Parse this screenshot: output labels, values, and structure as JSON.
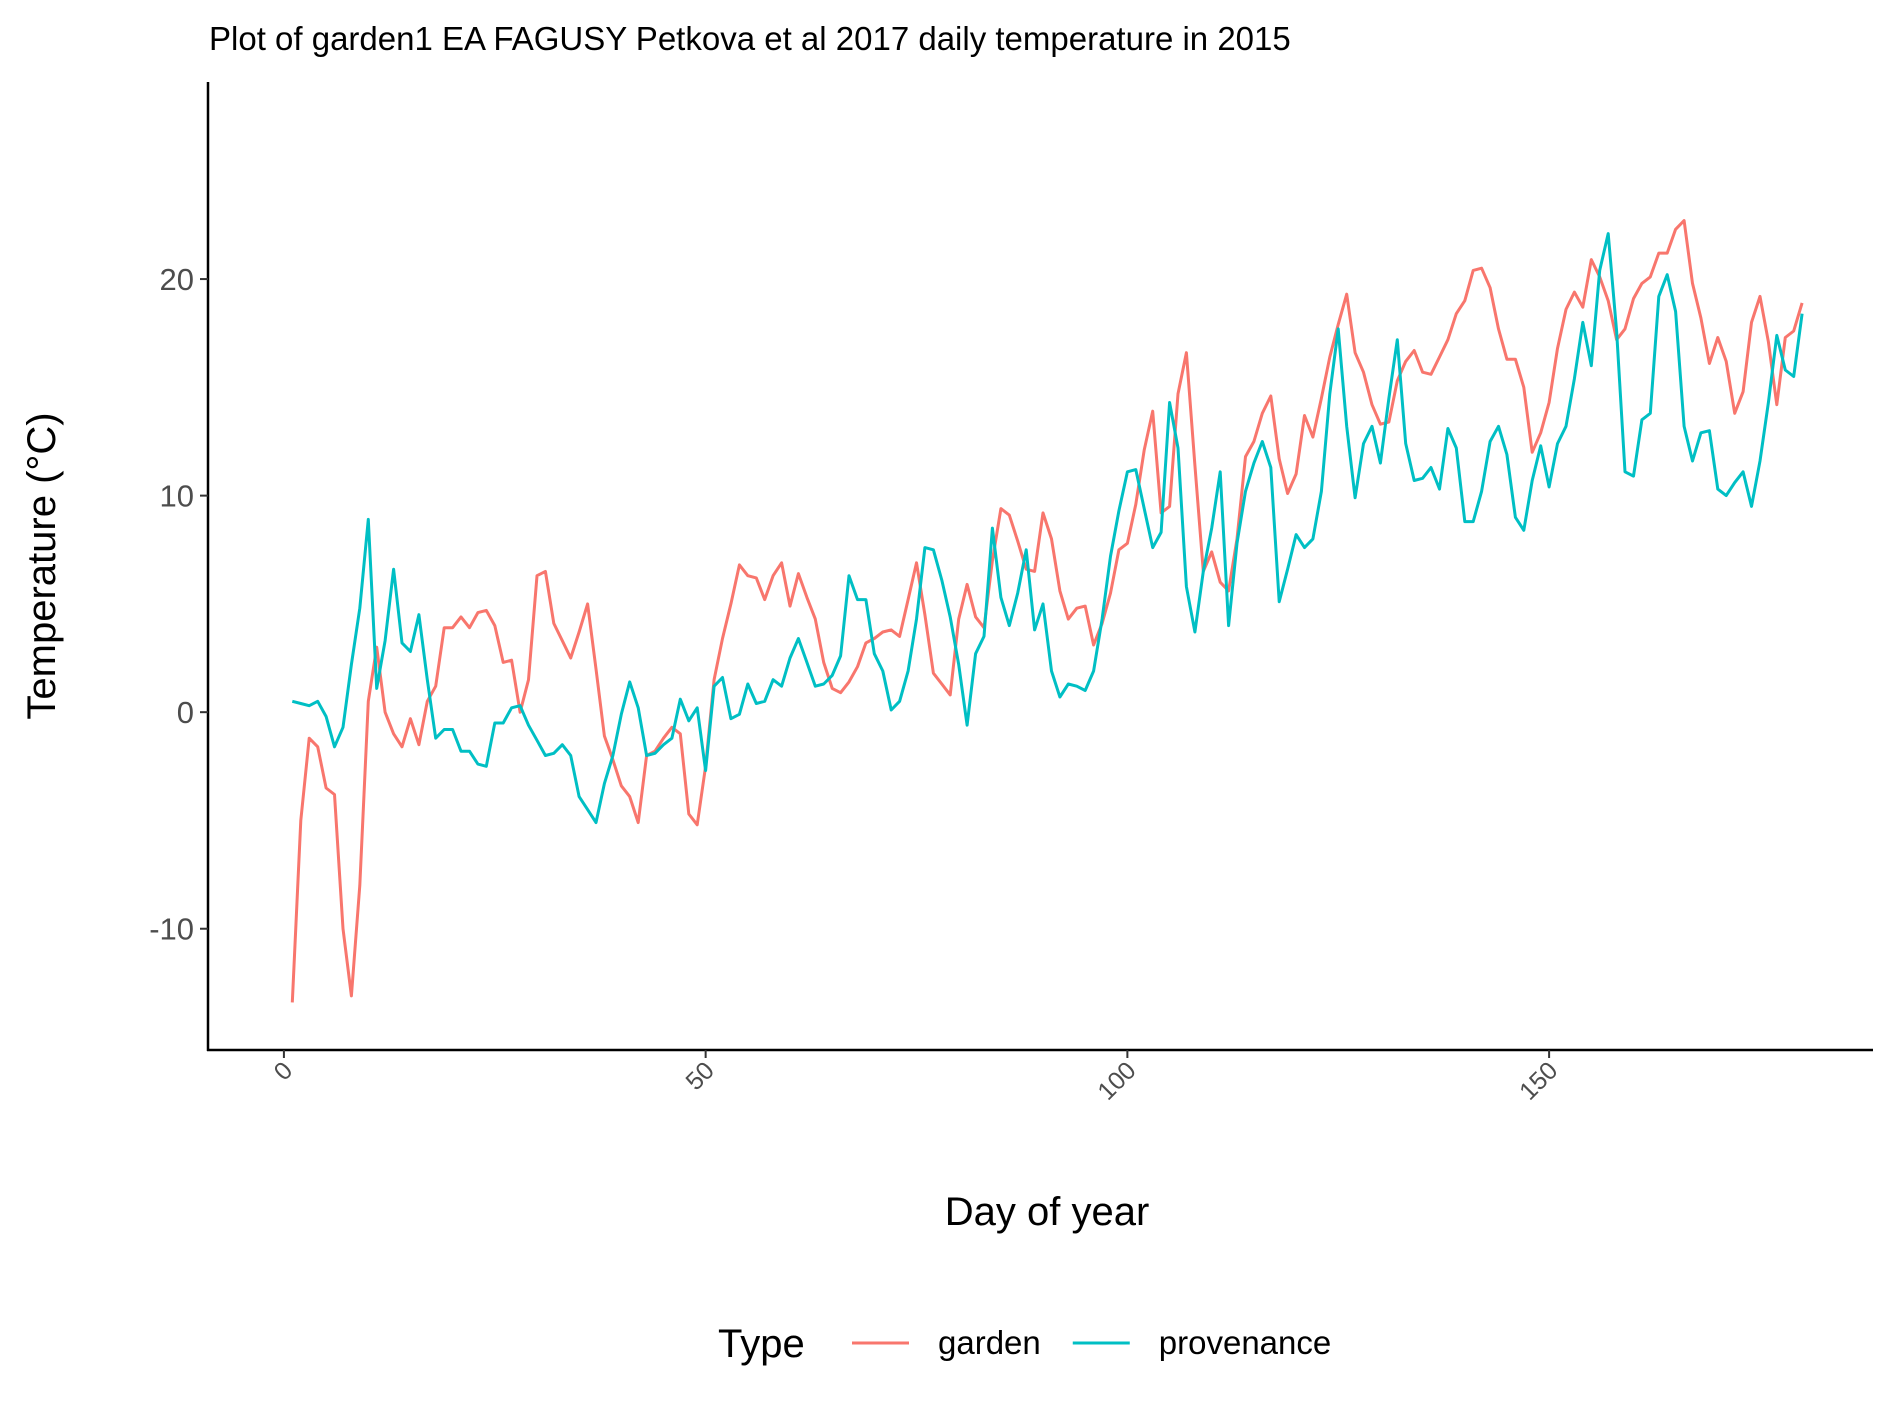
{
  "chart_data": {
    "type": "line",
    "title": "Plot of garden1 EA FAGUSY Petkova et al 2017 daily temperature in 2015",
    "x_label": "Day of year",
    "y_label": "Temperature (°C)",
    "legend_title": "Type",
    "grid": false,
    "legend_position": "bottom",
    "xlim": [
      -9,
      188.4
    ],
    "ylim": [
      -15.6,
      29.1
    ],
    "xticks": [
      0,
      50,
      100,
      150
    ],
    "yticks": [
      -10,
      0,
      10,
      20
    ],
    "x": [
      1,
      2,
      3,
      4,
      5,
      6,
      7,
      8,
      9,
      10,
      11,
      12,
      13,
      14,
      15,
      16,
      17,
      18,
      19,
      20,
      21,
      22,
      23,
      24,
      25,
      26,
      27,
      28,
      29,
      30,
      31,
      32,
      33,
      34,
      35,
      36,
      37,
      38,
      39,
      40,
      41,
      42,
      43,
      44,
      45,
      46,
      47,
      48,
      49,
      50,
      51,
      52,
      53,
      54,
      55,
      56,
      57,
      58,
      59,
      60,
      61,
      62,
      63,
      64,
      65,
      66,
      67,
      68,
      69,
      70,
      71,
      72,
      73,
      74,
      75,
      76,
      77,
      78,
      79,
      80,
      81,
      82,
      83,
      84,
      85,
      86,
      87,
      88,
      89,
      90,
      91,
      92,
      93,
      94,
      95,
      96,
      97,
      98,
      99,
      100,
      101,
      102,
      103,
      104,
      105,
      106,
      107,
      108,
      109,
      110,
      111,
      112,
      113,
      114,
      115,
      116,
      117,
      118,
      119,
      120,
      121,
      122,
      123,
      124,
      125,
      126,
      127,
      128,
      129,
      130,
      131,
      132,
      133,
      134,
      135,
      136,
      137,
      138,
      139,
      140,
      141,
      142,
      143,
      144,
      145,
      146,
      147,
      148,
      149,
      150,
      151,
      152,
      153,
      154,
      155,
      156,
      157,
      158,
      159,
      160,
      161,
      162,
      163,
      164,
      165,
      166,
      167,
      168,
      169,
      170,
      171,
      172,
      173,
      174,
      175,
      176,
      177,
      178,
      179,
      180
    ],
    "series": [
      {
        "name": "garden",
        "color": "#f8766d",
        "values": [
          -13.4,
          -5,
          -1.2,
          -1.6,
          -3.5,
          -3.8,
          -10,
          -13.1,
          -8,
          0.5,
          3,
          0,
          -1,
          -1.6,
          -0.3,
          -1.5,
          0.5,
          1.2,
          3.9,
          3.9,
          4.4,
          3.9,
          4.6,
          4.7,
          4,
          2.3,
          2.4,
          0,
          1.5,
          6.3,
          6.5,
          4.1,
          3.3,
          2.5,
          3.7,
          5,
          2,
          -1.1,
          -2.2,
          -3.4,
          -3.9,
          -5.1,
          -2,
          -1.8,
          -1.2,
          -0.7,
          -1,
          -4.7,
          -5.2,
          -2.5,
          1.5,
          3.4,
          5,
          6.8,
          6.3,
          6.2,
          5.2,
          6.3,
          6.9,
          4.9,
          6.4,
          5.3,
          4.3,
          2.3,
          1.1,
          0.9,
          1.4,
          2.1,
          3.2,
          3.4,
          3.7,
          3.8,
          3.5,
          5.2,
          6.9,
          4.5,
          1.8,
          1.3,
          0.8,
          4.3,
          5.9,
          4.4,
          3.9,
          7,
          9.4,
          9.1,
          7.9,
          6.6,
          6.5,
          9.2,
          8,
          5.6,
          4.3,
          4.8,
          4.9,
          3.1,
          4.1,
          5.5,
          7.5,
          7.8,
          9.6,
          12.1,
          13.9,
          9.2,
          9.5,
          14.7,
          16.6,
          11.4,
          6.5,
          7.4,
          6,
          5.6,
          8,
          11.8,
          12.5,
          13.8,
          14.6,
          11.7,
          10.1,
          11,
          13.7,
          12.7,
          14.5,
          16.4,
          17.9,
          19.3,
          16.6,
          15.7,
          14.2,
          13.3,
          13.4,
          15.3,
          16.2,
          16.7,
          15.7,
          15.6,
          16.4,
          17.2,
          18.4,
          19,
          20.4,
          20.5,
          19.6,
          17.7,
          16.3,
          16.3,
          15,
          12,
          12.9,
          14.3,
          16.8,
          18.6,
          19.4,
          18.7,
          20.9,
          20.1,
          19,
          17.2,
          17.7,
          19.1,
          19.8,
          20.1,
          21.2,
          21.2,
          22.3,
          22.7,
          19.8,
          18.2,
          16.1,
          17.3,
          16.2,
          13.8,
          14.8,
          18,
          19.2,
          17.1,
          14.2,
          17.3,
          17.6,
          18.9
        ]
      },
      {
        "name": "provenance",
        "color": "#00bfc4",
        "values": [
          0.5,
          0.4,
          0.3,
          0.5,
          -0.2,
          -1.6,
          -0.7,
          2.2,
          4.8,
          8.9,
          1.1,
          3.3,
          6.6,
          3.2,
          2.8,
          4.5,
          1.5,
          -1.2,
          -0.8,
          -0.8,
          -1.8,
          -1.8,
          -2.4,
          -2.5,
          -0.5,
          -0.5,
          0.2,
          0.3,
          -0.6,
          -1.3,
          -2,
          -1.9,
          -1.5,
          -2,
          -3.9,
          -4.5,
          -5.1,
          -3.3,
          -2,
          -0.1,
          1.4,
          0.2,
          -2,
          -1.9,
          -1.5,
          -1.2,
          0.6,
          -0.4,
          0.2,
          -2.7,
          1.2,
          1.6,
          -0.3,
          -0.1,
          1.3,
          0.4,
          0.5,
          1.5,
          1.2,
          2.5,
          3.4,
          2.3,
          1.2,
          1.3,
          1.7,
          2.6,
          6.3,
          5.2,
          5.2,
          2.7,
          1.9,
          0.1,
          0.5,
          1.9,
          4.3,
          7.6,
          7.5,
          6.1,
          4.4,
          2.2,
          -0.6,
          2.7,
          3.5,
          8.5,
          5.3,
          4,
          5.5,
          7.5,
          3.8,
          5,
          1.9,
          0.7,
          1.3,
          1.2,
          1,
          1.9,
          4.3,
          7.2,
          9.3,
          11.1,
          11.2,
          9.4,
          7.6,
          8.3,
          14.3,
          12.2,
          5.8,
          3.7,
          6.5,
          8.5,
          11.1,
          4,
          7.8,
          10.2,
          11.5,
          12.5,
          11.3,
          5.1,
          6.6,
          8.2,
          7.6,
          8,
          10.2,
          14.7,
          17.7,
          13.2,
          9.9,
          12.4,
          13.2,
          11.5,
          14.5,
          17.2,
          12.4,
          10.7,
          10.8,
          11.3,
          10.3,
          13.1,
          12.2,
          8.8,
          8.8,
          10.2,
          12.5,
          13.2,
          11.9,
          9,
          8.4,
          10.7,
          12.3,
          10.4,
          12.4,
          13.2,
          15.4,
          18,
          16,
          20.4,
          22.1,
          17.6,
          11.1,
          10.9,
          13.5,
          13.8,
          19.2,
          20.2,
          18.5,
          13.2,
          11.6,
          12.9,
          13,
          10.3,
          10,
          10.6,
          11.1,
          9.5,
          11.6,
          14.3,
          17.4,
          15.8,
          15.5,
          18.4
        ]
      }
    ]
  }
}
